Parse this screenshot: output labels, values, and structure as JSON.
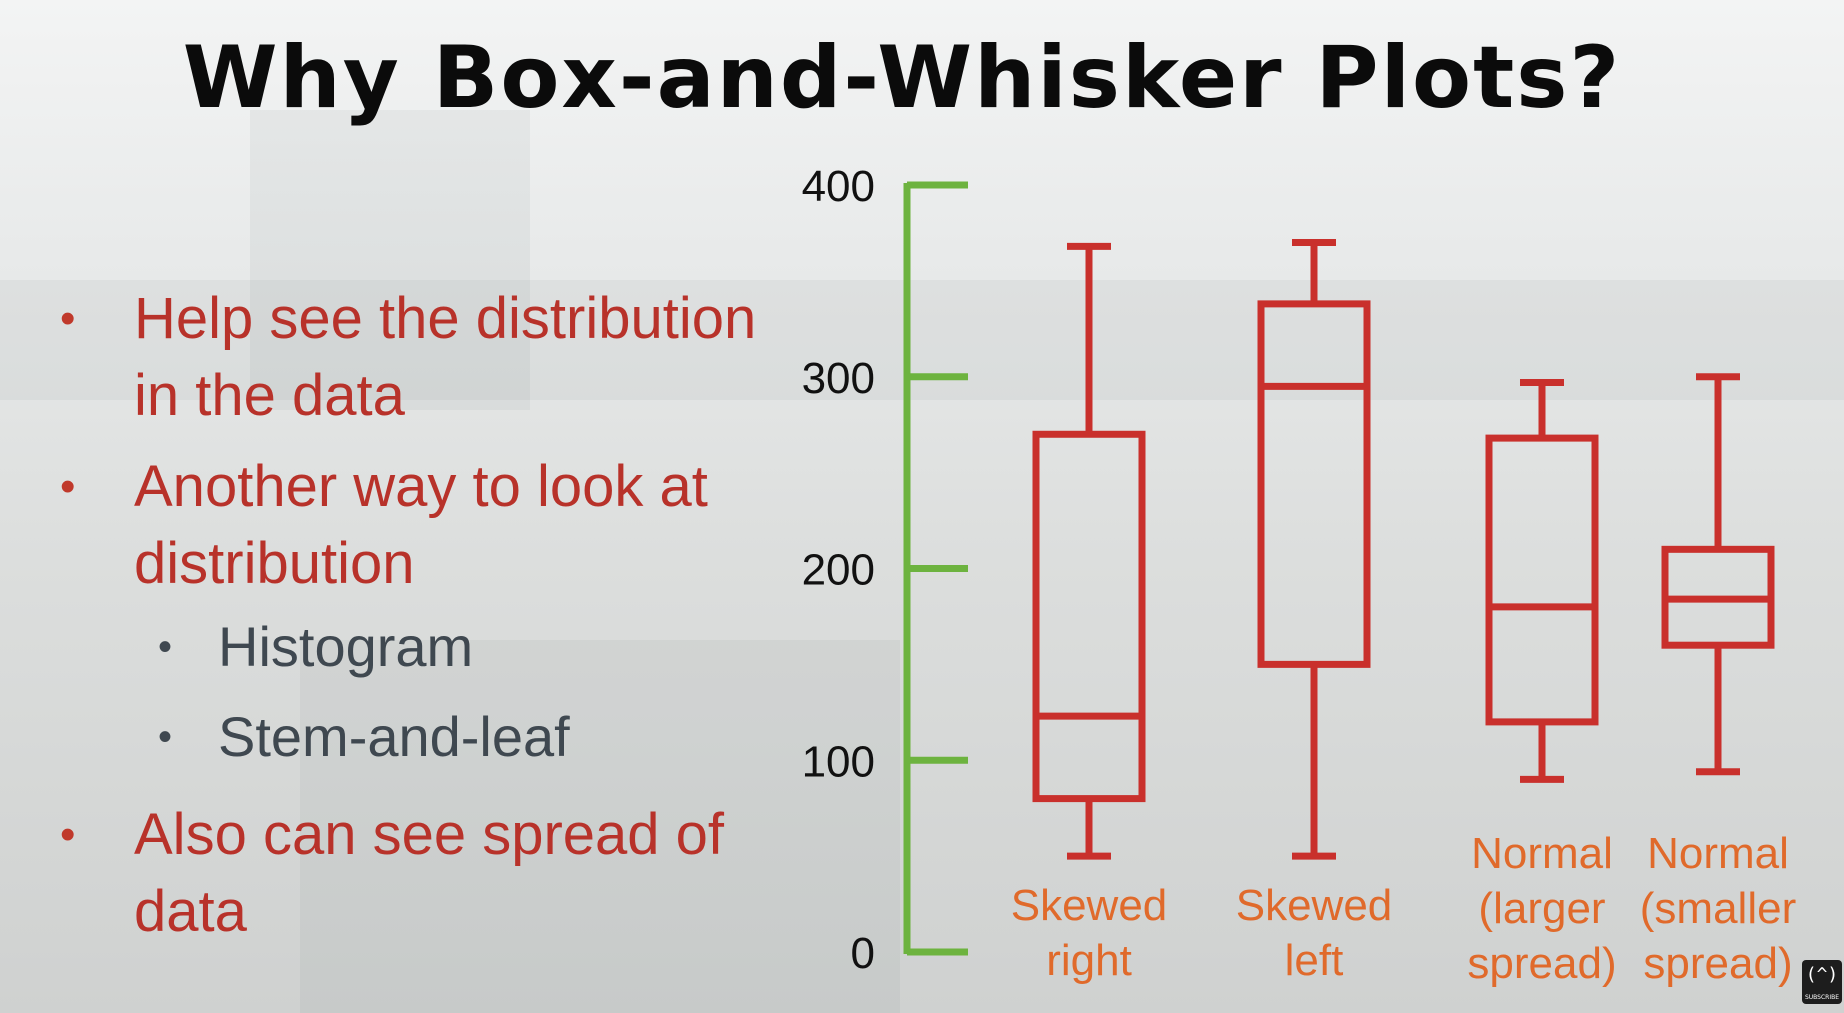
{
  "slide": {
    "title": "Why Box-and-Whisker Plots?",
    "bullets": [
      {
        "text": "Help see the distribution in the data",
        "lines": [
          "Help see the distribution",
          "in the data"
        ]
      },
      {
        "text": "Another way to look at distribution",
        "lines": [
          "Another way to look at",
          "distribution"
        ],
        "sub": [
          "Histogram",
          "Stem-and-leaf"
        ]
      },
      {
        "text": "Also can see spread of data",
        "lines": [
          "Also can see spread of",
          "data"
        ]
      }
    ],
    "bullet_char": "•"
  },
  "chart_data": {
    "type": "box",
    "title": "",
    "ylim": [
      0,
      400
    ],
    "yticks": [
      0,
      100,
      200,
      300,
      400
    ],
    "axis_color": "#6db33f",
    "box_color": "#c9302c",
    "label_color": "#e06a2b",
    "boxes": [
      {
        "label": "Skewed right",
        "label_lines": [
          "Skewed",
          "right"
        ],
        "min": 50,
        "q1": 80,
        "median": 123,
        "q3": 270,
        "max": 368
      },
      {
        "label": "Skewed left",
        "label_lines": [
          "Skewed",
          "left"
        ],
        "min": 50,
        "q1": 150,
        "median": 295,
        "q3": 338,
        "max": 370
      },
      {
        "label": "Normal (larger spread)",
        "label_lines": [
          "Normal",
          "(larger",
          "spread)"
        ],
        "min": 90,
        "q1": 120,
        "median": 180,
        "q3": 268,
        "max": 297
      },
      {
        "label": "Normal (smaller spread)",
        "label_lines": [
          "Normal",
          "(smaller",
          "spread)"
        ],
        "min": 94,
        "q1": 160,
        "median": 184,
        "q3": 210,
        "max": 300
      }
    ]
  },
  "icons": {
    "subscribe": "subscribe-icon"
  },
  "subscribe": {
    "glyph": "(^)",
    "label": "SUBSCRIBE"
  }
}
